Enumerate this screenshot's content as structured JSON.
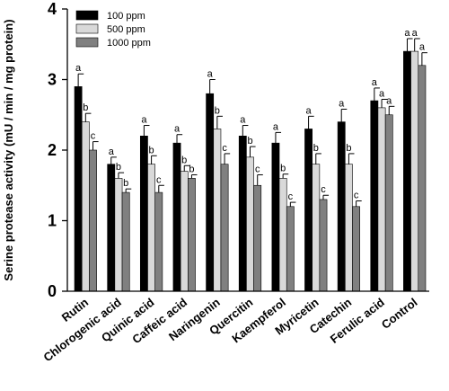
{
  "chart_data": {
    "type": "bar",
    "title": "",
    "xlabel": "",
    "ylabel": "Serine protease activity (mU / min / mg protein)",
    "ylim": [
      0,
      4
    ],
    "yticks": [
      0,
      1,
      2,
      3,
      4
    ],
    "grid": false,
    "legend_position": "top-left",
    "categories": [
      "Rutin",
      "Chlorogenic acid",
      "Quinic acid",
      "Caffeic acid",
      "Naringenin",
      "Quercitin",
      "Kaempferol",
      "Myricetin",
      "Catechin",
      "Ferulic acid",
      "Control"
    ],
    "series": [
      {
        "name": "100 ppm",
        "color": "#000000",
        "values": [
          2.9,
          1.8,
          2.2,
          2.1,
          2.8,
          2.2,
          2.1,
          2.3,
          2.4,
          2.7,
          3.4
        ],
        "errors": [
          0.18,
          0.1,
          0.15,
          0.12,
          0.2,
          0.15,
          0.15,
          0.18,
          0.18,
          0.18,
          0.18
        ],
        "significance": [
          "a",
          "a",
          "a",
          "a",
          "a",
          "a",
          "a",
          "a",
          "a",
          "a",
          "a"
        ]
      },
      {
        "name": "500 ppm",
        "color": "#d9d9d9",
        "values": [
          2.4,
          1.6,
          1.8,
          1.7,
          2.3,
          1.9,
          1.6,
          1.8,
          1.8,
          2.6,
          3.4
        ],
        "errors": [
          0.12,
          0.08,
          0.12,
          0.08,
          0.18,
          0.15,
          0.06,
          0.15,
          0.15,
          0.12,
          0.18
        ],
        "significance": [
          "b",
          "b",
          "b",
          "b",
          "b",
          "b",
          "b",
          "b",
          "b",
          "a",
          "a"
        ]
      },
      {
        "name": "1000 ppm",
        "color": "#808080",
        "values": [
          2.0,
          1.4,
          1.4,
          1.6,
          1.8,
          1.5,
          1.2,
          1.3,
          1.2,
          2.5,
          3.2
        ],
        "errors": [
          0.12,
          0.05,
          0.1,
          0.05,
          0.15,
          0.15,
          0.06,
          0.06,
          0.08,
          0.12,
          0.18
        ],
        "significance": [
          "c",
          "b",
          "c",
          "b",
          "c",
          "c",
          "c",
          "c",
          "c",
          "a",
          "a"
        ]
      }
    ]
  }
}
